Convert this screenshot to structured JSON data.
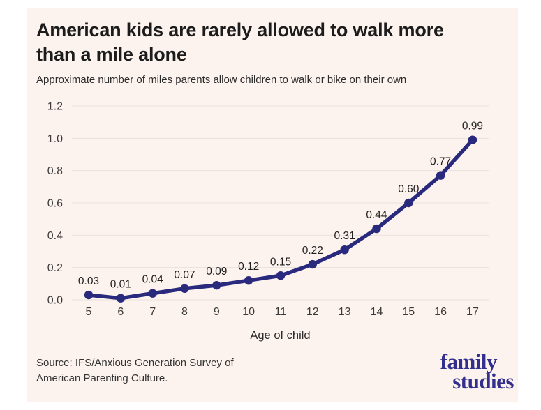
{
  "header": {
    "title": "American kids are rarely allowed to walk more than a mile alone",
    "subtitle": "Approximate number of miles parents allow children to walk or bike on their own"
  },
  "chart_data": {
    "type": "line",
    "x": [
      5,
      6,
      7,
      8,
      9,
      10,
      11,
      12,
      13,
      14,
      15,
      16,
      17
    ],
    "values": [
      0.03,
      0.01,
      0.04,
      0.07,
      0.09,
      0.12,
      0.15,
      0.22,
      0.31,
      0.44,
      0.6,
      0.77,
      0.99
    ],
    "point_labels": [
      "0.03",
      "0.01",
      "0.04",
      "0.07",
      "0.09",
      "0.12",
      "0.15",
      "0.22",
      "0.31",
      "0.44",
      "0.60",
      "0.77",
      "0.99"
    ],
    "xlabel": "Age of child",
    "ylabel": "",
    "ylim": [
      0,
      1.2
    ],
    "yticks": [
      0.0,
      0.2,
      0.4,
      0.6,
      0.8,
      1.0,
      1.2
    ],
    "ytick_labels": [
      "0.0",
      "0.2",
      "0.4",
      "0.6",
      "0.8",
      "1.0",
      "1.2"
    ],
    "grid": true,
    "legend": "none",
    "line_color": "#29297e",
    "grid_color": "#e8e1dc",
    "background_color": "#fdf3ee"
  },
  "footer": {
    "source": "Source: IFS/Anxious Generation Survey of American Parenting Culture.",
    "logo_line1": "family",
    "logo_line2": "studies",
    "logo_color": "#32308c"
  }
}
